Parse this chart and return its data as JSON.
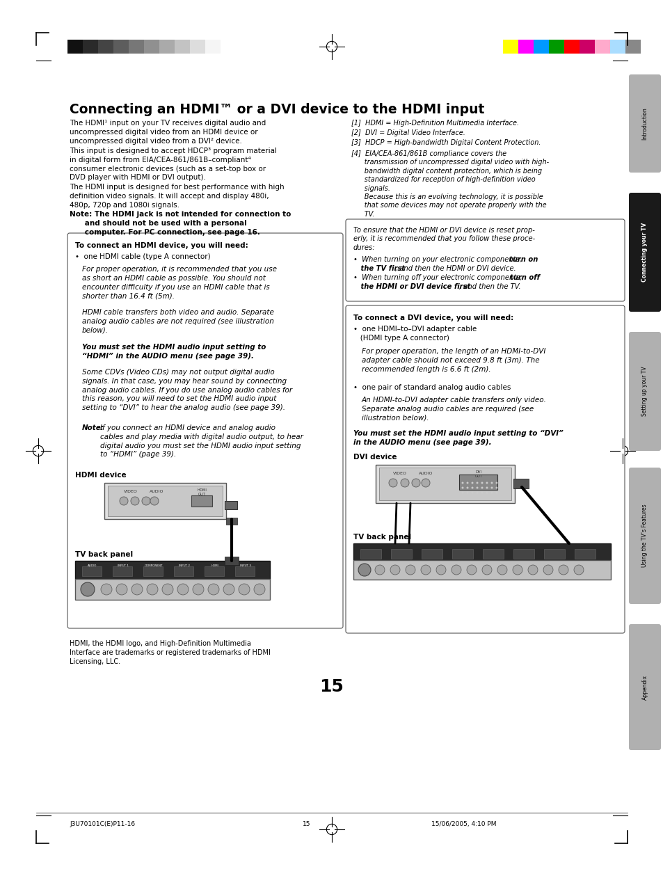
{
  "title": "Connecting an HDMI™ or a DVI device to the HDMI input",
  "bg_color": "#ffffff",
  "page_number": "15",
  "footer_left": "J3U70101C(E)P11-16",
  "footer_center": "15",
  "footer_right": "15/06/2005, 4:10 PM",
  "color_bars_left": [
    "#111111",
    "#2a2a2a",
    "#444444",
    "#5d5d5d",
    "#777777",
    "#909090",
    "#aaaaaa",
    "#c3c3c3",
    "#dddddd",
    "#f5f5f5"
  ],
  "color_bars_right": [
    "#ffff00",
    "#ff00ff",
    "#0099ff",
    "#009900",
    "#ff0000",
    "#cc0066",
    "#ffaacc",
    "#aaddff",
    "#888888"
  ],
  "tab_labels": [
    "Introduction",
    "Connecting your TV",
    "Setting up your TV",
    "Using the TV’s Features",
    "Appendix"
  ],
  "tab_active": 1
}
